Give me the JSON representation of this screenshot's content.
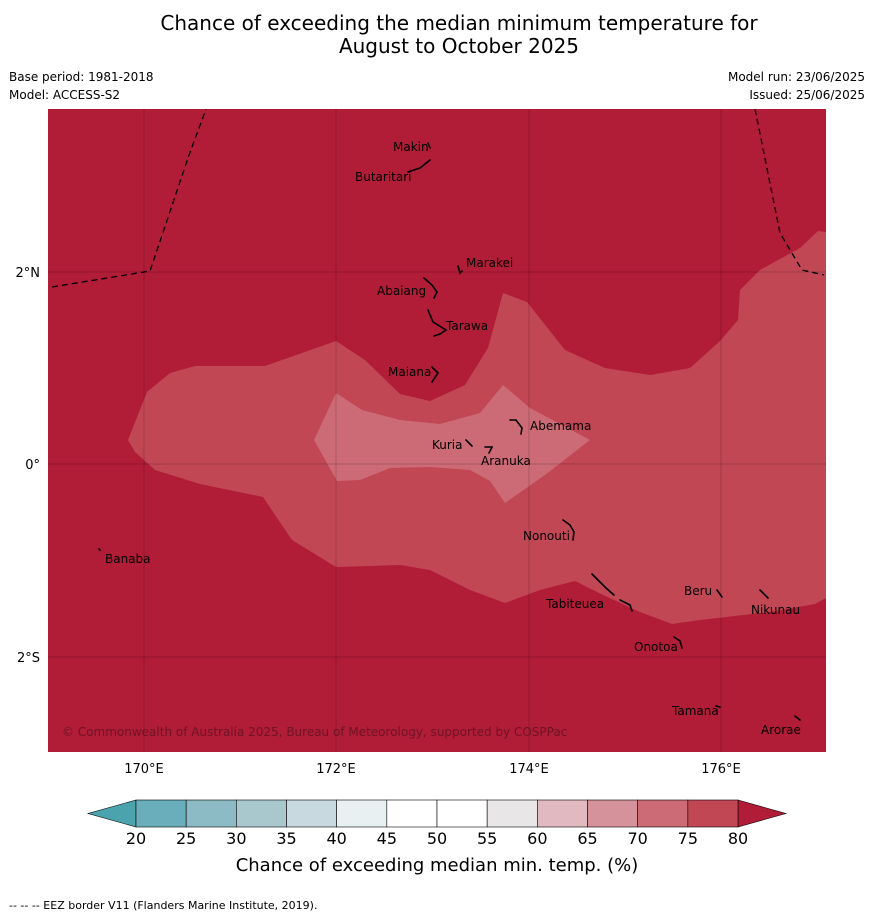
{
  "title_line1": "Chance of exceeding the median minimum temperature for",
  "title_line2": "August to October 2025",
  "meta": {
    "base_period": "Base period: 1981-2018",
    "model": "Model: ACCESS-S2",
    "model_run": "Model run: 23/06/2025",
    "issued": "Issued: 25/06/2025"
  },
  "map": {
    "lat_labels": [
      "2°N",
      "0°",
      "2°S"
    ],
    "lon_labels": [
      "170°E",
      "172°E",
      "174°E",
      "176°E"
    ],
    "places": [
      "Makin",
      "Butaritari",
      "Marakei",
      "Abaiang",
      "Tarawa",
      "Maiana",
      "Abemama",
      "Kuria",
      "Aranuka",
      "Nonouti",
      "Banaba",
      "Beru",
      "Nikunau",
      "Tabiteuea",
      "Onotoa",
      "Tamana",
      "Arorae"
    ],
    "copyright": "© Commonwealth of Australia 2025, Bureau of Meteorology, supported by COSPPac",
    "colors": {
      "c75_80": "#b11c37",
      "c70_75": "#c14755",
      "c65_70": "#cc6b76"
    }
  },
  "colorbar": {
    "ticks": [
      "20",
      "25",
      "30",
      "35",
      "40",
      "45",
      "50",
      "55",
      "60",
      "65",
      "70",
      "75",
      "80"
    ],
    "colors": [
      "#6aaebb",
      "#8cbbc6",
      "#a9c8ce",
      "#c8dadf",
      "#e9f0f2",
      "#ffffff",
      "#ffffff",
      "#e8e6e7",
      "#e1b9c0",
      "#d5929b",
      "#cc6b76",
      "#c14755"
    ],
    "low_color": "#4aa3ad",
    "high_color": "#b11c37",
    "label": "Chance of exceeding median min. temp. (%)"
  },
  "footnote": "--  --  -- EEZ border V11 (Flanders Marine Institute, 2019)."
}
